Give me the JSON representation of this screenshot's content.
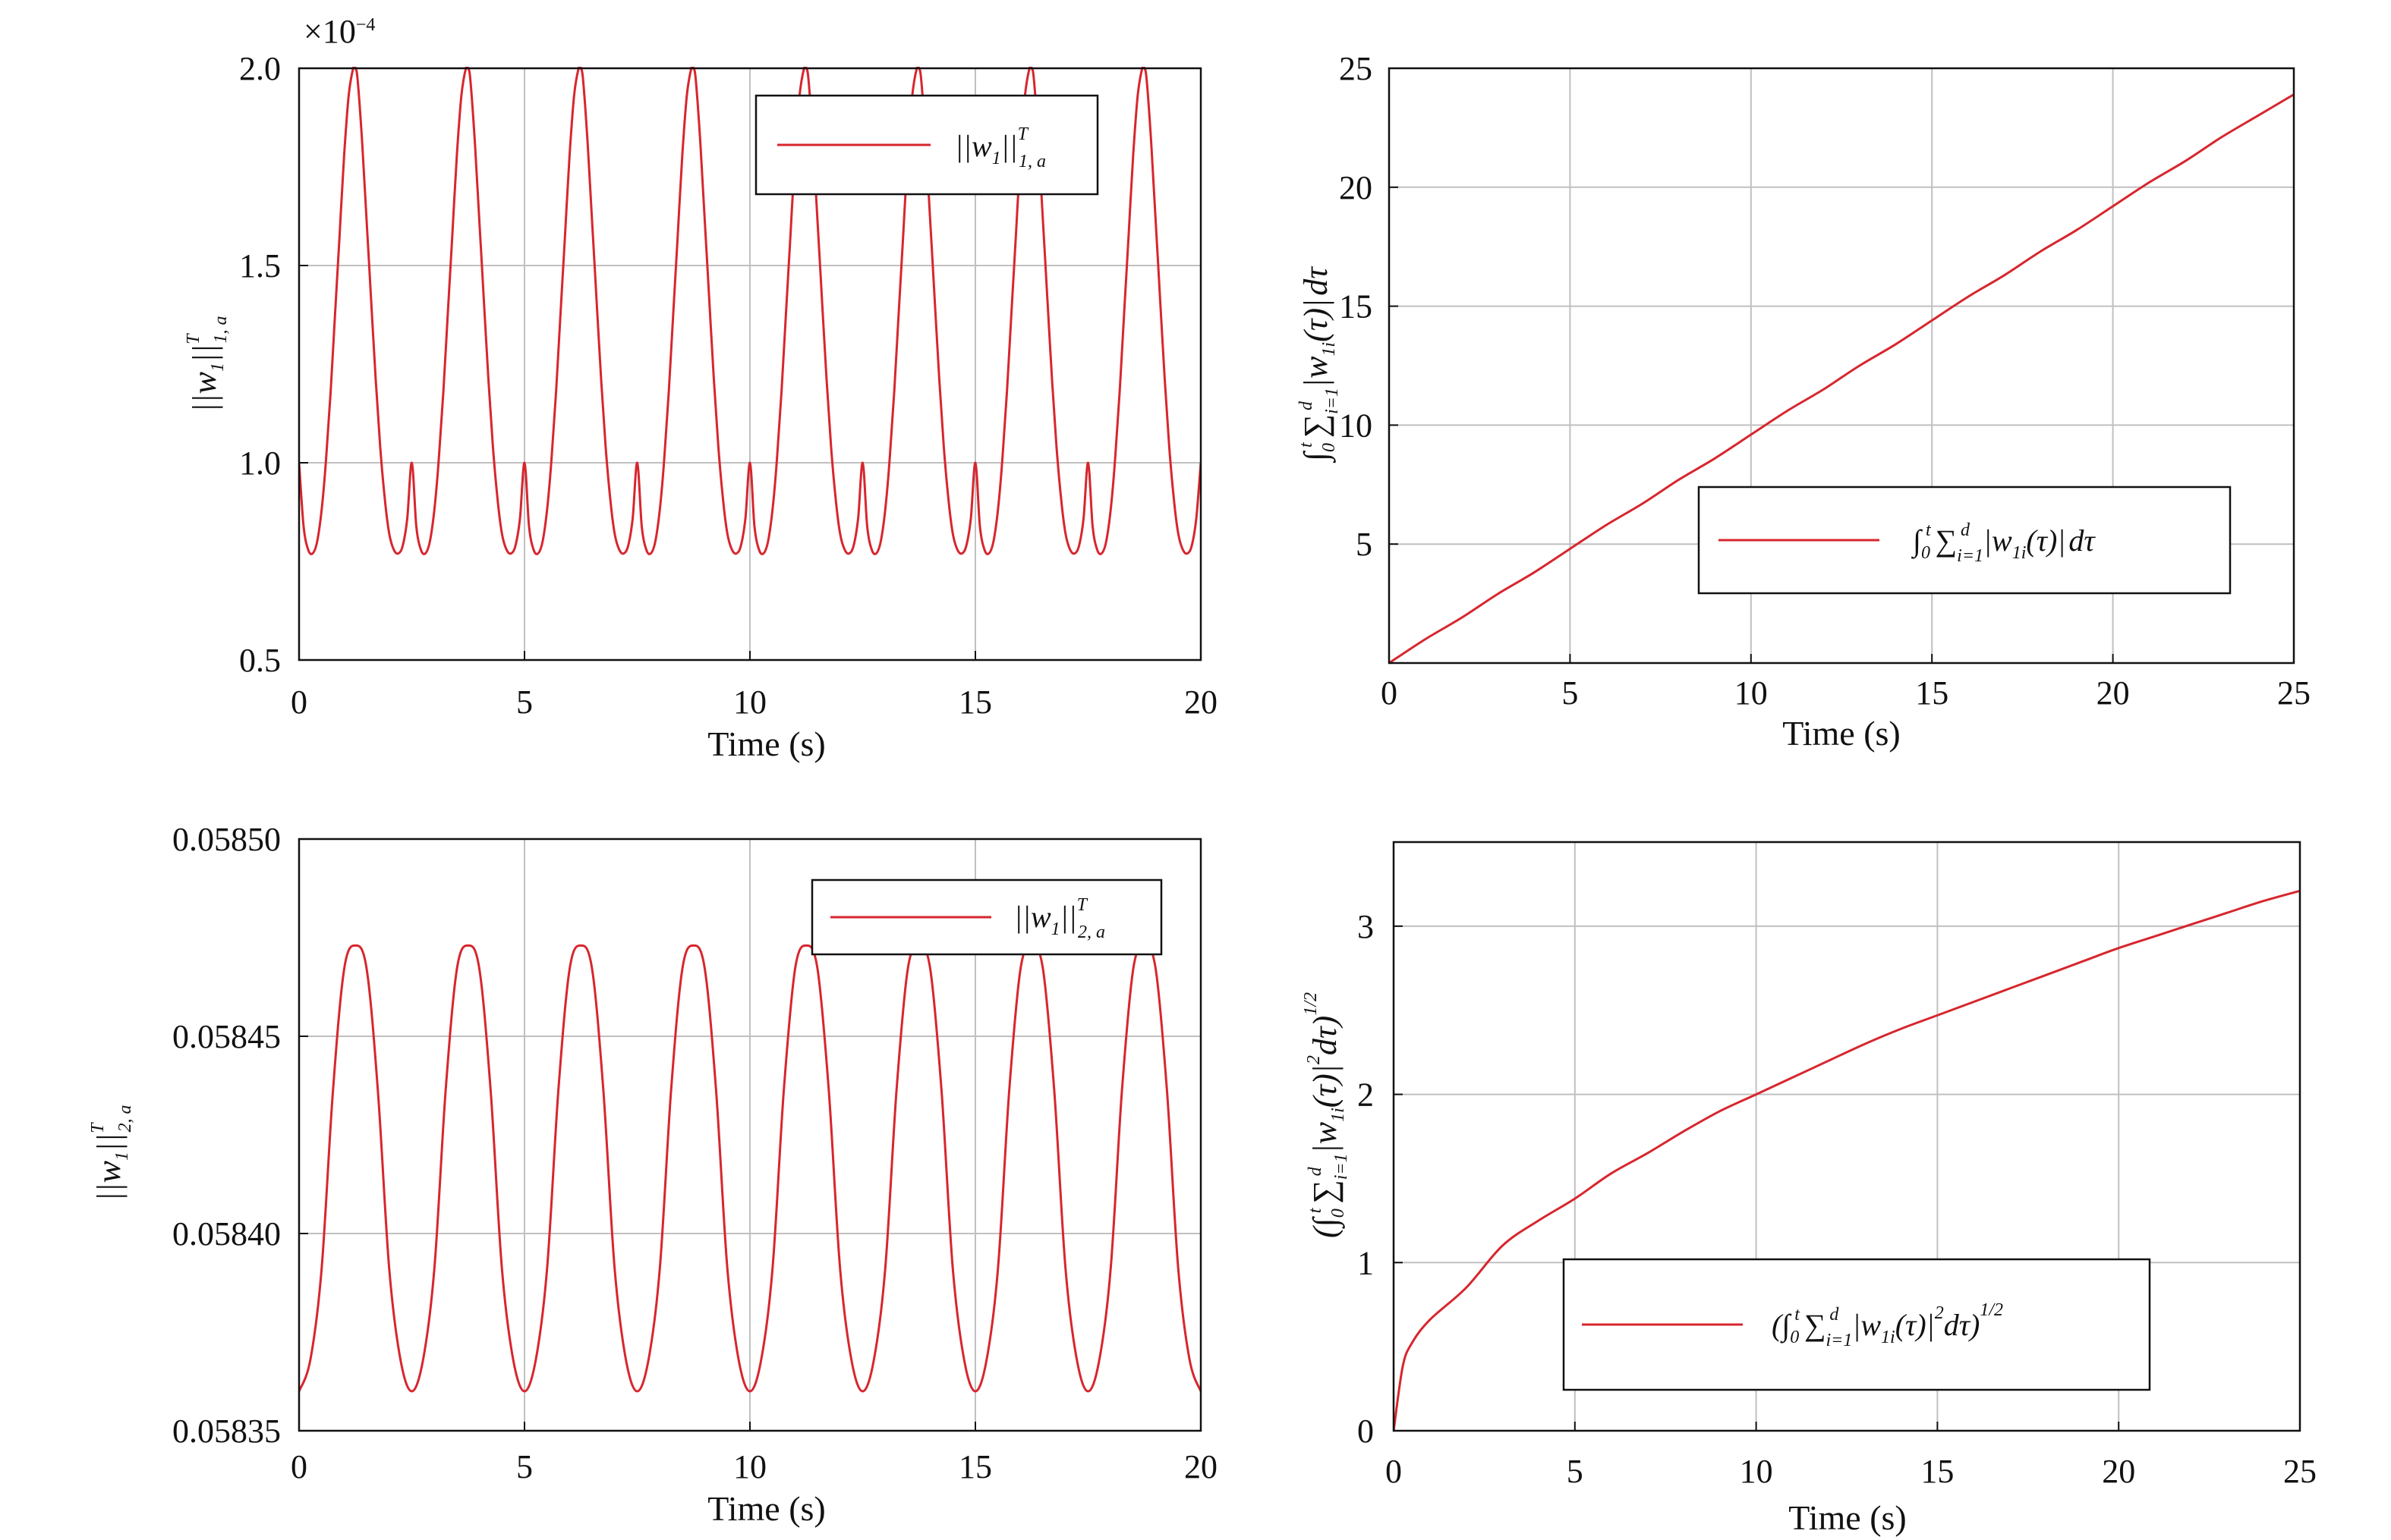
{
  "colors": {
    "line": "#d7262e",
    "grid": "#c0c0c0",
    "axis": "#111111"
  },
  "chart_data": [
    {
      "type": "line",
      "xlabel": "Time (s)",
      "ylabel": "||w1||T1, a",
      "ylabel_parts": {
        "norm": "||w",
        "sub1": "1",
        "close": "||",
        "sup": "T",
        "sub2": "1, a"
      },
      "xlim": [
        0,
        20
      ],
      "ylim": [
        0.5,
        2.0
      ],
      "x_ticks": [
        "0",
        "5",
        "10",
        "15",
        "20"
      ],
      "y_ticks": [
        "0.5",
        "1.0",
        "1.5",
        "2.0"
      ],
      "exponent_label": "×10",
      "exponent_power": "−4",
      "grid": true,
      "legend": "top-right",
      "series": [
        {
          "name": "||w1||T1, a",
          "description_kind": "periodic",
          "period": 2.5,
          "x": [
            0,
            0.1,
            0.2,
            0.3,
            0.4,
            0.5,
            0.6,
            0.7,
            0.8,
            0.9,
            1.0,
            1.1,
            1.2,
            1.25,
            1.3,
            1.4,
            1.5,
            1.6,
            1.7,
            1.8,
            1.9,
            2.0,
            2.1,
            2.2,
            2.3,
            2.4,
            2.5
          ],
          "y": [
            1.0,
            0.84,
            0.78,
            0.77,
            0.8,
            0.88,
            1.01,
            1.18,
            1.38,
            1.58,
            1.78,
            1.93,
            2.0,
            2.0,
            1.97,
            1.81,
            1.61,
            1.41,
            1.21,
            1.04,
            0.91,
            0.82,
            0.78,
            0.77,
            0.79,
            0.86,
            1.0
          ]
        }
      ]
    },
    {
      "type": "line",
      "xlabel": "Time (s)",
      "ylabel": "∫0t Σi=1d |w1i(τ)| dτ",
      "xlim": [
        0,
        25
      ],
      "ylim": [
        0,
        25
      ],
      "x_ticks": [
        "0",
        "5",
        "10",
        "15",
        "20",
        "25"
      ],
      "y_ticks": [
        "5",
        "10",
        "15",
        "20",
        "25"
      ],
      "grid": true,
      "legend": "center-right",
      "series": [
        {
          "name": "∫0t Σi=1d |w1i(τ)| dτ",
          "x": [
            0,
            1,
            2,
            3,
            4,
            5,
            6,
            7,
            8,
            9,
            10,
            11,
            12,
            13,
            14,
            15,
            16,
            17,
            18,
            19,
            20,
            21,
            22,
            23,
            24,
            25
          ],
          "y": [
            0,
            1.0,
            1.9,
            2.9,
            3.8,
            4.8,
            5.8,
            6.7,
            7.7,
            8.6,
            9.6,
            10.6,
            11.5,
            12.5,
            13.4,
            14.4,
            15.4,
            16.3,
            17.3,
            18.2,
            19.2,
            20.2,
            21.1,
            22.1,
            23.0,
            23.9
          ]
        }
      ]
    },
    {
      "type": "line",
      "xlabel": "Time (s)",
      "ylabel": "||w1||T2, a",
      "ylabel_parts": {
        "norm": "||w",
        "sub1": "1",
        "close": "||",
        "sup": "T",
        "sub2": "2, a"
      },
      "xlim": [
        0,
        20
      ],
      "ylim": [
        0.05835,
        0.0585
      ],
      "x_ticks": [
        "0",
        "5",
        "10",
        "15",
        "20"
      ],
      "y_ticks": [
        "0.05835",
        "0.05840",
        "0.05845",
        "0.05850"
      ],
      "grid": true,
      "legend": "top-right",
      "series": [
        {
          "name": "||w1||T2, a",
          "description_kind": "periodic",
          "period": 2.5,
          "x": [
            0,
            0.25,
            0.5,
            0.75,
            1.0,
            1.25,
            1.5,
            1.75,
            2.0,
            2.25,
            2.5
          ],
          "y": [
            0.05836,
            0.058368,
            0.058391,
            0.058436,
            0.058467,
            0.058473,
            0.058467,
            0.058436,
            0.058391,
            0.058368,
            0.05836
          ]
        }
      ]
    },
    {
      "type": "line",
      "xlabel": "Time (s)",
      "ylabel": "(∫0t Σi=1d |w1i(τ)|2 dτ)1/2",
      "xlim": [
        0,
        25
      ],
      "ylim": [
        0,
        3.5
      ],
      "x_ticks": [
        "0",
        "5",
        "10",
        "15",
        "20",
        "25"
      ],
      "y_ticks": [
        "0",
        "1",
        "2",
        "3"
      ],
      "grid": true,
      "legend": "bottom-right",
      "series": [
        {
          "name": "(∫0t Σi=1d |w1i(τ)|2 dτ)1/2",
          "x": [
            0,
            0.25,
            0.5,
            1,
            2,
            3,
            4,
            5,
            6,
            7,
            8,
            9,
            10,
            11,
            12,
            13,
            14,
            15,
            16,
            17,
            18,
            19,
            20,
            21,
            22,
            23,
            24,
            25
          ],
          "y": [
            0,
            0.38,
            0.52,
            0.66,
            0.85,
            1.1,
            1.25,
            1.38,
            1.53,
            1.65,
            1.78,
            1.9,
            2.0,
            2.1,
            2.2,
            2.3,
            2.39,
            2.47,
            2.55,
            2.63,
            2.71,
            2.79,
            2.87,
            2.94,
            3.01,
            3.08,
            3.15,
            3.21
          ]
        }
      ]
    }
  ],
  "legend_parts": {
    "tl": {
      "norm": "||w",
      "sub1": "1",
      "close": "||",
      "sup": "T",
      "sub2": "1, a"
    },
    "bl": {
      "norm": "||w",
      "sub1": "1",
      "close": "||",
      "sup": "T",
      "sub2": "2, a"
    },
    "integral": "∫",
    "lower0": "0",
    "upper_t": "t",
    "sigma": "∑",
    "sigma_lower": "i=1",
    "sigma_upper": "d",
    "abs_open": "|w",
    "sub_1i": "1i",
    "tau_part": "(τ)",
    "abs_close": "|",
    "dtau": "dτ",
    "sq": "2",
    "paren_open": "(",
    "paren_close": ")",
    "half": "1/2"
  }
}
